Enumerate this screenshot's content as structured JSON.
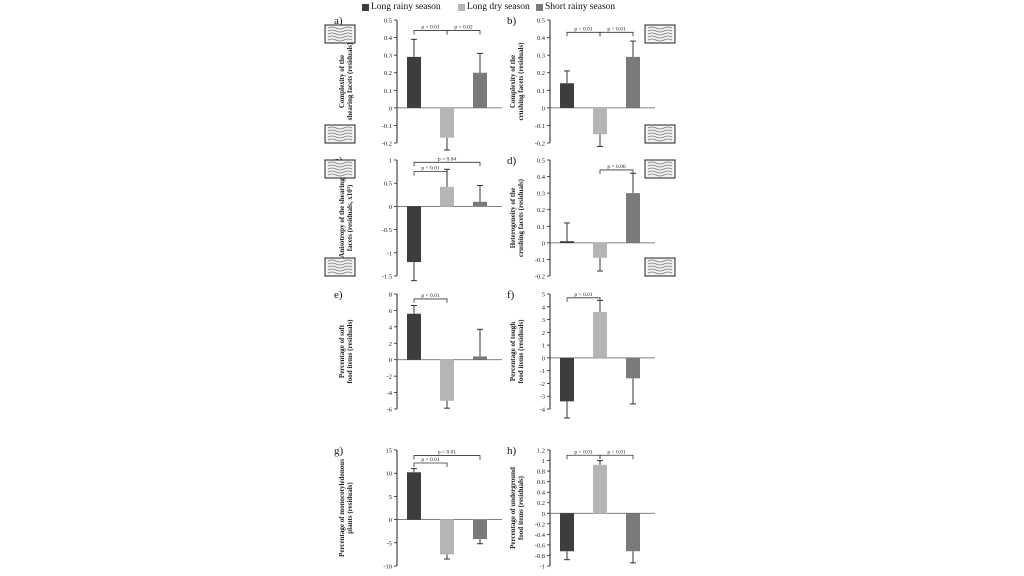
{
  "legend": {
    "items": [
      {
        "label": "Long rainy season",
        "color": "#3d3d3d"
      },
      {
        "label": "Long dry season",
        "color": "#b5b5b5"
      },
      {
        "label": "Short rainy season",
        "color": "#7a7a7a"
      }
    ]
  },
  "chart_data": [
    {
      "panel": "a)",
      "type": "bar",
      "ylabel": "Complexity of the shearing facets (residuals)",
      "ylim": [
        -0.2,
        0.5
      ],
      "ticks": [
        "-0.2",
        "-0.1",
        "0",
        "0.1",
        "0.2",
        "0.3",
        "0.4",
        "0.5"
      ],
      "values": [
        0.29,
        -0.17,
        0.2
      ],
      "errors": [
        0.1,
        0.07,
        0.11
      ],
      "annotations": [
        {
          "from": 0,
          "to": 1,
          "level": 0.44,
          "text": "p < 0.01"
        },
        {
          "from": 1,
          "to": 2,
          "level": 0.44,
          "text": "p = 0.02"
        }
      ]
    },
    {
      "panel": "b)",
      "type": "bar",
      "ylabel": "Complexity of the crushing facets (residuals)",
      "ylim": [
        -0.2,
        0.5
      ],
      "ticks": [
        "-0.2",
        "-0.1",
        "0",
        "0.1",
        "0.2",
        "0.3",
        "0.4",
        "0.5"
      ],
      "values": [
        0.14,
        -0.15,
        0.29
      ],
      "errors": [
        0.07,
        0.07,
        0.09
      ],
      "annotations": [
        {
          "from": 0,
          "to": 1,
          "level": 0.43,
          "text": "p < 0.01"
        },
        {
          "from": 1,
          "to": 2,
          "level": 0.43,
          "text": "p < 0.01"
        }
      ]
    },
    {
      "panel": "c)",
      "type": "bar",
      "ylabel": "Anisotropy of the shearing facets (residuals, x10³)",
      "ylim": [
        -1.5,
        1
      ],
      "ticks": [
        "-1.5",
        "-1",
        "-0.5",
        "0",
        "0.5",
        "1"
      ],
      "values": [
        -1.2,
        0.42,
        0.1
      ],
      "errors": [
        0.4,
        0.38,
        0.35
      ],
      "annotations": [
        {
          "from": 0,
          "to": 1,
          "level": 0.75,
          "text": "p < 0.01"
        },
        {
          "from": 0,
          "to": 2,
          "level": 0.95,
          "text": "p = 0.04"
        }
      ]
    },
    {
      "panel": "d)",
      "type": "bar",
      "ylabel": "Heterogeneity of the crushing facets (residuals)",
      "ylim": [
        -0.2,
        0.5
      ],
      "ticks": [
        "-0.2",
        "-0.1",
        "0",
        "0.1",
        "0.2",
        "0.3",
        "0.4",
        "0.5"
      ],
      "values": [
        0.01,
        -0.09,
        0.3
      ],
      "errors": [
        0.11,
        0.08,
        0.12
      ],
      "annotations": [
        {
          "from": 1,
          "to": 2,
          "level": 0.44,
          "text": "p = 0.06"
        }
      ]
    },
    {
      "panel": "e)",
      "type": "bar",
      "ylabel": "Percentage of soft food items (residuals)",
      "ylim": [
        -6,
        8
      ],
      "ticks": [
        "-6",
        "-4",
        "-2",
        "0",
        "2",
        "4",
        "6",
        "8"
      ],
      "values": [
        5.6,
        -5.0,
        0.4
      ],
      "errors": [
        1.0,
        0.9,
        3.3
      ],
      "annotations": [
        {
          "from": 0,
          "to": 1,
          "level": 7.4,
          "text": "p < 0.01"
        }
      ]
    },
    {
      "panel": "f)",
      "type": "bar",
      "ylabel": "Percentage of tough food items (residuals)",
      "ylim": [
        -4,
        5
      ],
      "ticks": [
        "-4",
        "-3",
        "-2",
        "-1",
        "0",
        "1",
        "2",
        "3",
        "4",
        "5"
      ],
      "values": [
        -3.4,
        3.6,
        -1.6
      ],
      "errors": [
        1.3,
        0.9,
        2.0
      ],
      "annotations": [
        {
          "from": 0,
          "to": 1,
          "level": 4.7,
          "text": "p < 0.01"
        }
      ]
    },
    {
      "panel": "g)",
      "type": "bar",
      "ylabel": "Percentage of monocotyledonous plants (residuals)",
      "ylim": [
        -10,
        15
      ],
      "ticks": [
        "-10",
        "-5",
        "0",
        "5",
        "10",
        "15"
      ],
      "values": [
        10.2,
        -7.5,
        -4.2
      ],
      "errors": [
        0.8,
        1.0,
        1.0
      ],
      "annotations": [
        {
          "from": 0,
          "to": 1,
          "level": 12.2,
          "text": "p < 0.01"
        },
        {
          "from": 0,
          "to": 2,
          "level": 13.8,
          "text": "p < 0.01"
        }
      ]
    },
    {
      "panel": "h)",
      "type": "bar",
      "ylabel": "Percentage of underground food items (residuals)",
      "ylim": [
        -1,
        1.2
      ],
      "ticks": [
        "-1",
        "-0.8",
        "-0.6",
        "-0.4",
        "-0.2",
        "0",
        "0.2",
        "0.4",
        "0.6",
        "0.8",
        "1",
        "1.2"
      ],
      "values": [
        -0.72,
        0.92,
        -0.72
      ],
      "errors": [
        0.16,
        0.08,
        0.22
      ],
      "annotations": [
        {
          "from": 0,
          "to": 1,
          "level": 1.1,
          "text": "p < 0.01"
        },
        {
          "from": 1,
          "to": 2,
          "level": 1.1,
          "text": "p < 0.01"
        }
      ]
    }
  ]
}
